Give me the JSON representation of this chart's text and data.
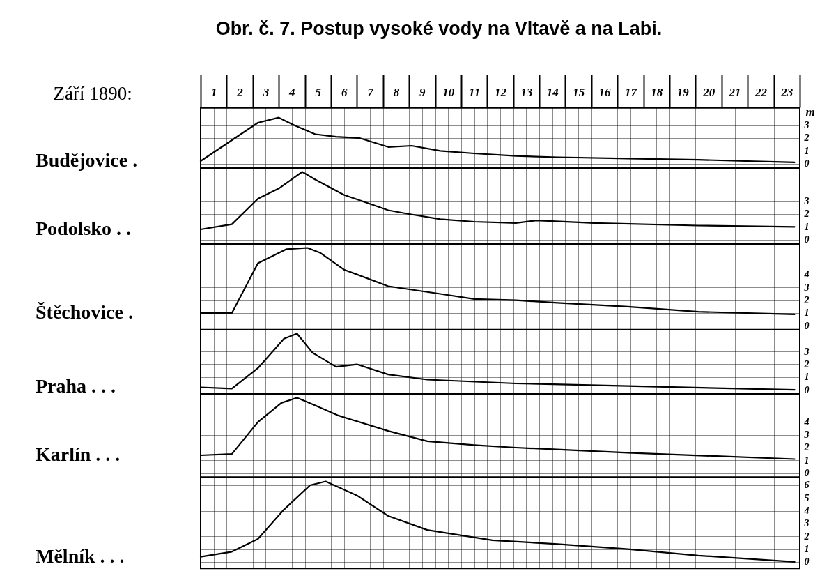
{
  "chart_data": [
    {
      "type": "line",
      "title": "Obr. č. 7. Postup vysoké vody na Vltavě a na Labi.",
      "xlabel": "Září 1890:",
      "ylabel": "m",
      "grid": true,
      "legend": false,
      "marker": "none",
      "line_style": "solid",
      "xlim": [
        1,
        24
      ],
      "xticks": [
        {
          "value": 1,
          "label": null
        },
        {
          "value": 1.5,
          "label": "1"
        },
        {
          "value": 2,
          "label": null
        },
        {
          "value": 2.5,
          "label": "2"
        },
        {
          "value": 3,
          "label": null
        },
        {
          "value": 3.5,
          "label": "3"
        },
        {
          "value": 4,
          "label": null
        },
        {
          "value": 4.5,
          "label": "4"
        },
        {
          "value": 5,
          "label": null
        },
        {
          "value": 5.5,
          "label": "5"
        },
        {
          "value": 6,
          "label": null
        },
        {
          "value": 6.5,
          "label": "6"
        },
        {
          "value": 7,
          "label": null
        },
        {
          "value": 7.5,
          "label": "7"
        },
        {
          "value": 8,
          "label": null
        },
        {
          "value": 8.5,
          "label": "8"
        },
        {
          "value": 9,
          "label": null
        },
        {
          "value": 9.5,
          "label": "9"
        },
        {
          "value": 10,
          "label": null
        },
        {
          "value": 10.5,
          "label": "10"
        },
        {
          "value": 11,
          "label": null
        },
        {
          "value": 11.5,
          "label": "11"
        },
        {
          "value": 12,
          "label": null
        },
        {
          "value": 12.5,
          "label": "12"
        },
        {
          "value": 13,
          "label": null
        },
        {
          "value": 13.5,
          "label": "13"
        },
        {
          "value": 14,
          "label": null
        },
        {
          "value": 14.5,
          "label": "14"
        },
        {
          "value": 15,
          "label": null
        },
        {
          "value": 15.5,
          "label": "15"
        },
        {
          "value": 16,
          "label": null
        },
        {
          "value": 16.5,
          "label": "16"
        },
        {
          "value": 17,
          "label": null
        },
        {
          "value": 17.5,
          "label": "17"
        },
        {
          "value": 18,
          "label": null
        },
        {
          "value": 18.5,
          "label": "18"
        },
        {
          "value": 19,
          "label": null
        },
        {
          "value": 19.5,
          "label": "19"
        },
        {
          "value": 20,
          "label": null
        },
        {
          "value": 20.5,
          "label": "20"
        },
        {
          "value": 21,
          "label": null
        },
        {
          "value": 21.5,
          "label": "21"
        },
        {
          "value": 22,
          "label": null
        },
        {
          "value": 22.5,
          "label": "22"
        },
        {
          "value": 23,
          "label": null
        },
        {
          "value": 23.5,
          "label": "23"
        },
        {
          "value": 24,
          "label": null
        }
      ],
      "ylim": [
        -0.3,
        4.4
      ],
      "yticks": [
        0,
        1,
        2,
        3
      ],
      "series": [
        {
          "name": "Budějovice .",
          "color": "#000000",
          "x": [
            1.0,
            2.1,
            3.2,
            4.0,
            4.6,
            5.4,
            6.2,
            7.1,
            8.2,
            9.1,
            10.2,
            11.5,
            13.1,
            14.7,
            17.4,
            20.1,
            23.8
          ],
          "values": [
            0.2,
            1.7,
            3.2,
            3.6,
            3.0,
            2.3,
            2.1,
            2.0,
            1.3,
            1.4,
            1.0,
            0.8,
            0.6,
            0.5,
            0.4,
            0.3,
            0.1
          ]
        }
      ]
    },
    {
      "type": "line",
      "grid": true,
      "legend": false,
      "marker": "none",
      "line_style": "solid",
      "tick_labels": "y",
      "xlim": [
        1,
        24
      ],
      "xticks": [
        {
          "value": 1,
          "label": null
        },
        {
          "value": 1.5,
          "label": null
        },
        {
          "value": 2,
          "label": null
        },
        {
          "value": 2.5,
          "label": null
        },
        {
          "value": 3,
          "label": null
        },
        {
          "value": 3.5,
          "label": null
        },
        {
          "value": 4,
          "label": null
        },
        {
          "value": 4.5,
          "label": null
        },
        {
          "value": 5,
          "label": null
        },
        {
          "value": 5.5,
          "label": null
        },
        {
          "value": 6,
          "label": null
        },
        {
          "value": 6.5,
          "label": null
        },
        {
          "value": 7,
          "label": null
        },
        {
          "value": 7.5,
          "label": null
        },
        {
          "value": 8,
          "label": null
        },
        {
          "value": 8.5,
          "label": null
        },
        {
          "value": 9,
          "label": null
        },
        {
          "value": 9.5,
          "label": null
        },
        {
          "value": 10,
          "label": null
        },
        {
          "value": 10.5,
          "label": null
        },
        {
          "value": 11,
          "label": null
        },
        {
          "value": 11.5,
          "label": null
        },
        {
          "value": 12,
          "label": null
        },
        {
          "value": 12.5,
          "label": null
        },
        {
          "value": 13,
          "label": null
        },
        {
          "value": 13.5,
          "label": null
        },
        {
          "value": 14,
          "label": null
        },
        {
          "value": 14.5,
          "label": null
        },
        {
          "value": 15,
          "label": null
        },
        {
          "value": 15.5,
          "label": null
        },
        {
          "value": 16,
          "label": null
        },
        {
          "value": 16.5,
          "label": null
        },
        {
          "value": 17,
          "label": null
        },
        {
          "value": 17.5,
          "label": null
        },
        {
          "value": 18,
          "label": null
        },
        {
          "value": 18.5,
          "label": null
        },
        {
          "value": 19,
          "label": null
        },
        {
          "value": 19.5,
          "label": null
        },
        {
          "value": 20,
          "label": null
        },
        {
          "value": 20.5,
          "label": null
        },
        {
          "value": 21,
          "label": null
        },
        {
          "value": 21.5,
          "label": null
        },
        {
          "value": 22,
          "label": null
        },
        {
          "value": 22.5,
          "label": null
        },
        {
          "value": 23,
          "label": null
        },
        {
          "value": 23.5,
          "label": null
        },
        {
          "value": 24,
          "label": null
        }
      ],
      "ylim": [
        -0.3,
        5.6
      ],
      "yticks": [
        0,
        1,
        2,
        3
      ],
      "series": [
        {
          "name": "Podolsko . .",
          "color": "#000000",
          "x": [
            1.0,
            2.2,
            3.2,
            4.0,
            4.9,
            5.4,
            6.5,
            8.2,
            9.0,
            10.2,
            11.5,
            13.1,
            13.9,
            16.1,
            20.1,
            23.8
          ],
          "values": [
            0.8,
            1.2,
            3.2,
            4.0,
            5.3,
            4.7,
            3.5,
            2.3,
            2.0,
            1.6,
            1.4,
            1.3,
            1.5,
            1.3,
            1.1,
            1.0
          ]
        }
      ]
    },
    {
      "type": "line",
      "grid": true,
      "legend": false,
      "marker": "none",
      "line_style": "solid",
      "tick_labels": "y",
      "xlim": [
        1,
        24
      ],
      "xticks": [
        {
          "value": 1,
          "label": null
        },
        {
          "value": 1.5,
          "label": null
        },
        {
          "value": 2,
          "label": null
        },
        {
          "value": 2.5,
          "label": null
        },
        {
          "value": 3,
          "label": null
        },
        {
          "value": 3.5,
          "label": null
        },
        {
          "value": 4,
          "label": null
        },
        {
          "value": 4.5,
          "label": null
        },
        {
          "value": 5,
          "label": null
        },
        {
          "value": 5.5,
          "label": null
        },
        {
          "value": 6,
          "label": null
        },
        {
          "value": 6.5,
          "label": null
        },
        {
          "value": 7,
          "label": null
        },
        {
          "value": 7.5,
          "label": null
        },
        {
          "value": 8,
          "label": null
        },
        {
          "value": 8.5,
          "label": null
        },
        {
          "value": 9,
          "label": null
        },
        {
          "value": 9.5,
          "label": null
        },
        {
          "value": 10,
          "label": null
        },
        {
          "value": 10.5,
          "label": null
        },
        {
          "value": 11,
          "label": null
        },
        {
          "value": 11.5,
          "label": null
        },
        {
          "value": 12,
          "label": null
        },
        {
          "value": 12.5,
          "label": null
        },
        {
          "value": 13,
          "label": null
        },
        {
          "value": 13.5,
          "label": null
        },
        {
          "value": 14,
          "label": null
        },
        {
          "value": 14.5,
          "label": null
        },
        {
          "value": 15,
          "label": null
        },
        {
          "value": 15.5,
          "label": null
        },
        {
          "value": 16,
          "label": null
        },
        {
          "value": 16.5,
          "label": null
        },
        {
          "value": 17,
          "label": null
        },
        {
          "value": 17.5,
          "label": null
        },
        {
          "value": 18,
          "label": null
        },
        {
          "value": 18.5,
          "label": null
        },
        {
          "value": 19,
          "label": null
        },
        {
          "value": 19.5,
          "label": null
        },
        {
          "value": 20,
          "label": null
        },
        {
          "value": 20.5,
          "label": null
        },
        {
          "value": 21,
          "label": null
        },
        {
          "value": 21.5,
          "label": null
        },
        {
          "value": 22,
          "label": null
        },
        {
          "value": 22.5,
          "label": null
        },
        {
          "value": 23,
          "label": null
        },
        {
          "value": 23.5,
          "label": null
        },
        {
          "value": 24,
          "label": null
        }
      ],
      "ylim": [
        -0.3,
        6.4
      ],
      "yticks": [
        0,
        1,
        2,
        3,
        4
      ],
      "series": [
        {
          "name": "Štěchovice .",
          "color": "#000000",
          "x": [
            1.0,
            2.2,
            3.2,
            4.3,
            5.1,
            5.6,
            6.5,
            8.2,
            10.2,
            11.5,
            13.1,
            14.7,
            17.4,
            20.1,
            23.8
          ],
          "values": [
            1.0,
            1.0,
            4.9,
            6.0,
            6.1,
            5.7,
            4.4,
            3.1,
            2.5,
            2.1,
            2.0,
            1.8,
            1.5,
            1.1,
            0.9
          ]
        }
      ]
    },
    {
      "type": "line",
      "grid": true,
      "legend": false,
      "marker": "none",
      "line_style": "solid",
      "tick_labels": "y",
      "xlim": [
        1,
        24
      ],
      "xticks": [
        {
          "value": 1,
          "label": null
        },
        {
          "value": 1.5,
          "label": null
        },
        {
          "value": 2,
          "label": null
        },
        {
          "value": 2.5,
          "label": null
        },
        {
          "value": 3,
          "label": null
        },
        {
          "value": 3.5,
          "label": null
        },
        {
          "value": 4,
          "label": null
        },
        {
          "value": 4.5,
          "label": null
        },
        {
          "value": 5,
          "label": null
        },
        {
          "value": 5.5,
          "label": null
        },
        {
          "value": 6,
          "label": null
        },
        {
          "value": 6.5,
          "label": null
        },
        {
          "value": 7,
          "label": null
        },
        {
          "value": 7.5,
          "label": null
        },
        {
          "value": 8,
          "label": null
        },
        {
          "value": 8.5,
          "label": null
        },
        {
          "value": 9,
          "label": null
        },
        {
          "value": 9.5,
          "label": null
        },
        {
          "value": 10,
          "label": null
        },
        {
          "value": 10.5,
          "label": null
        },
        {
          "value": 11,
          "label": null
        },
        {
          "value": 11.5,
          "label": null
        },
        {
          "value": 12,
          "label": null
        },
        {
          "value": 12.5,
          "label": null
        },
        {
          "value": 13,
          "label": null
        },
        {
          "value": 13.5,
          "label": null
        },
        {
          "value": 14,
          "label": null
        },
        {
          "value": 14.5,
          "label": null
        },
        {
          "value": 15,
          "label": null
        },
        {
          "value": 15.5,
          "label": null
        },
        {
          "value": 16,
          "label": null
        },
        {
          "value": 16.5,
          "label": null
        },
        {
          "value": 17,
          "label": null
        },
        {
          "value": 17.5,
          "label": null
        },
        {
          "value": 18,
          "label": null
        },
        {
          "value": 18.5,
          "label": null
        },
        {
          "value": 19,
          "label": null
        },
        {
          "value": 19.5,
          "label": null
        },
        {
          "value": 20,
          "label": null
        },
        {
          "value": 20.5,
          "label": null
        },
        {
          "value": 21,
          "label": null
        },
        {
          "value": 21.5,
          "label": null
        },
        {
          "value": 22,
          "label": null
        },
        {
          "value": 22.5,
          "label": null
        },
        {
          "value": 23,
          "label": null
        },
        {
          "value": 23.5,
          "label": null
        },
        {
          "value": 24,
          "label": null
        }
      ],
      "ylim": [
        -0.3,
        4.7
      ],
      "yticks": [
        0,
        1,
        2,
        3
      ],
      "series": [
        {
          "name": "Praha . . .",
          "color": "#000000",
          "x": [
            1.0,
            2.2,
            3.2,
            4.2,
            4.7,
            5.3,
            6.2,
            7.0,
            8.2,
            9.7,
            13.1,
            17.4,
            23.8
          ],
          "values": [
            0.2,
            0.1,
            1.7,
            4.0,
            4.4,
            2.9,
            1.8,
            2.0,
            1.2,
            0.8,
            0.5,
            0.3,
            0.0
          ]
        }
      ]
    },
    {
      "type": "line",
      "grid": true,
      "legend": false,
      "marker": "none",
      "line_style": "solid",
      "tick_labels": "y",
      "xlim": [
        1,
        24
      ],
      "xticks": [
        {
          "value": 1,
          "label": null
        },
        {
          "value": 1.5,
          "label": null
        },
        {
          "value": 2,
          "label": null
        },
        {
          "value": 2.5,
          "label": null
        },
        {
          "value": 3,
          "label": null
        },
        {
          "value": 3.5,
          "label": null
        },
        {
          "value": 4,
          "label": null
        },
        {
          "value": 4.5,
          "label": null
        },
        {
          "value": 5,
          "label": null
        },
        {
          "value": 5.5,
          "label": null
        },
        {
          "value": 6,
          "label": null
        },
        {
          "value": 6.5,
          "label": null
        },
        {
          "value": 7,
          "label": null
        },
        {
          "value": 7.5,
          "label": null
        },
        {
          "value": 8,
          "label": null
        },
        {
          "value": 8.5,
          "label": null
        },
        {
          "value": 9,
          "label": null
        },
        {
          "value": 9.5,
          "label": null
        },
        {
          "value": 10,
          "label": null
        },
        {
          "value": 10.5,
          "label": null
        },
        {
          "value": 11,
          "label": null
        },
        {
          "value": 11.5,
          "label": null
        },
        {
          "value": 12,
          "label": null
        },
        {
          "value": 12.5,
          "label": null
        },
        {
          "value": 13,
          "label": null
        },
        {
          "value": 13.5,
          "label": null
        },
        {
          "value": 14,
          "label": null
        },
        {
          "value": 14.5,
          "label": null
        },
        {
          "value": 15,
          "label": null
        },
        {
          "value": 15.5,
          "label": null
        },
        {
          "value": 16,
          "label": null
        },
        {
          "value": 16.5,
          "label": null
        },
        {
          "value": 17,
          "label": null
        },
        {
          "value": 17.5,
          "label": null
        },
        {
          "value": 18,
          "label": null
        },
        {
          "value": 18.5,
          "label": null
        },
        {
          "value": 19,
          "label": null
        },
        {
          "value": 19.5,
          "label": null
        },
        {
          "value": 20,
          "label": null
        },
        {
          "value": 20.5,
          "label": null
        },
        {
          "value": 21,
          "label": null
        },
        {
          "value": 21.5,
          "label": null
        },
        {
          "value": 22,
          "label": null
        },
        {
          "value": 22.5,
          "label": null
        },
        {
          "value": 23,
          "label": null
        },
        {
          "value": 23.5,
          "label": null
        },
        {
          "value": 24,
          "label": null
        }
      ],
      "ylim": [
        -0.3,
        6.2
      ],
      "yticks": [
        0,
        1,
        2,
        3,
        4
      ],
      "series": [
        {
          "name": "Karlín . . .",
          "color": "#000000",
          "x": [
            1.0,
            2.2,
            3.2,
            4.1,
            4.7,
            5.4,
            6.3,
            8.2,
            9.7,
            11.5,
            13.1,
            17.4,
            23.8
          ],
          "values": [
            1.4,
            1.5,
            4.0,
            5.5,
            5.9,
            5.3,
            4.5,
            3.3,
            2.5,
            2.2,
            2.0,
            1.6,
            1.1
          ]
        }
      ]
    },
    {
      "type": "line",
      "grid": true,
      "legend": false,
      "marker": "none",
      "line_style": "solid",
      "tick_labels": "y",
      "xlim": [
        1,
        24
      ],
      "xticks": [
        {
          "value": 1,
          "label": null
        },
        {
          "value": 1.5,
          "label": null
        },
        {
          "value": 2,
          "label": null
        },
        {
          "value": 2.5,
          "label": null
        },
        {
          "value": 3,
          "label": null
        },
        {
          "value": 3.5,
          "label": null
        },
        {
          "value": 4,
          "label": null
        },
        {
          "value": 4.5,
          "label": null
        },
        {
          "value": 5,
          "label": null
        },
        {
          "value": 5.5,
          "label": null
        },
        {
          "value": 6,
          "label": null
        },
        {
          "value": 6.5,
          "label": null
        },
        {
          "value": 7,
          "label": null
        },
        {
          "value": 7.5,
          "label": null
        },
        {
          "value": 8,
          "label": null
        },
        {
          "value": 8.5,
          "label": null
        },
        {
          "value": 9,
          "label": null
        },
        {
          "value": 9.5,
          "label": null
        },
        {
          "value": 10,
          "label": null
        },
        {
          "value": 10.5,
          "label": null
        },
        {
          "value": 11,
          "label": null
        },
        {
          "value": 11.5,
          "label": null
        },
        {
          "value": 12,
          "label": null
        },
        {
          "value": 12.5,
          "label": null
        },
        {
          "value": 13,
          "label": null
        },
        {
          "value": 13.5,
          "label": null
        },
        {
          "value": 14,
          "label": null
        },
        {
          "value": 14.5,
          "label": null
        },
        {
          "value": 15,
          "label": null
        },
        {
          "value": 15.5,
          "label": null
        },
        {
          "value": 16,
          "label": null
        },
        {
          "value": 16.5,
          "label": null
        },
        {
          "value": 17,
          "label": null
        },
        {
          "value": 17.5,
          "label": null
        },
        {
          "value": 18,
          "label": null
        },
        {
          "value": 18.5,
          "label": null
        },
        {
          "value": 19,
          "label": null
        },
        {
          "value": 19.5,
          "label": null
        },
        {
          "value": 20,
          "label": null
        },
        {
          "value": 20.5,
          "label": null
        },
        {
          "value": 21,
          "label": null
        },
        {
          "value": 21.5,
          "label": null
        },
        {
          "value": 22,
          "label": null
        },
        {
          "value": 22.5,
          "label": null
        },
        {
          "value": 23,
          "label": null
        },
        {
          "value": 23.5,
          "label": null
        },
        {
          "value": 24,
          "label": null
        }
      ],
      "ylim": [
        -0.5,
        6.6
      ],
      "yticks": [
        0,
        1,
        2,
        3,
        4,
        5,
        6
      ],
      "series": [
        {
          "name": "Mělník . . .",
          "color": "#000000",
          "x": [
            1.0,
            2.2,
            3.2,
            4.2,
            5.2,
            5.8,
            7.0,
            8.2,
            9.7,
            12.2,
            14.7,
            17.4,
            20.1,
            23.8
          ],
          "values": [
            0.4,
            0.8,
            1.8,
            4.1,
            6.0,
            6.3,
            5.2,
            3.6,
            2.5,
            1.7,
            1.4,
            1.0,
            0.5,
            0.0
          ]
        }
      ]
    }
  ]
}
